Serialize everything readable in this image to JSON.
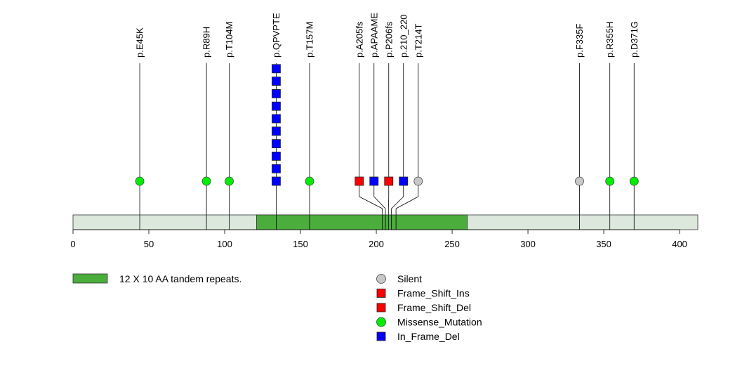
{
  "chart_data": {
    "type": "lollipop",
    "protein_length": 411,
    "axis": {
      "range": [
        0,
        412
      ],
      "ticks": [
        0,
        50,
        100,
        150,
        200,
        250,
        300,
        350,
        400
      ]
    },
    "domains": [
      {
        "label": "12 X 10 AA tandem repeats.",
        "start": 121,
        "end": 260,
        "color": "#4aad3c"
      }
    ],
    "backbone_color": "#dde8dc",
    "mutations": [
      {
        "label": "p.E45K",
        "position": 44,
        "type": "Missense_Mutation",
        "count": 1
      },
      {
        "label": "p.R89H",
        "position": 88,
        "type": "Missense_Mutation",
        "count": 1
      },
      {
        "label": "p.T104M",
        "position": 103,
        "type": "Missense_Mutation",
        "count": 1
      },
      {
        "label": "p.QPVPTE",
        "position": 134,
        "type": "In_Frame_Del",
        "count": 10
      },
      {
        "label": "p.T157M",
        "position": 156,
        "type": "Missense_Mutation",
        "count": 1
      },
      {
        "label": "p.A205fs",
        "position": 204,
        "type": "Frame_Shift_Ins",
        "count": 1
      },
      {
        "label": "p.APAAME",
        "position": 206,
        "type": "In_Frame_Del",
        "count": 1
      },
      {
        "label": "p.P206fs",
        "position": 208,
        "type": "Frame_Shift_Del",
        "count": 1
      },
      {
        "label": "p.210_220",
        "position": 210,
        "type": "In_Frame_Del",
        "count": 1
      },
      {
        "label": "p.T214T",
        "position": 213,
        "type": "Silent",
        "count": 1
      },
      {
        "label": "p.F335F",
        "position": 334,
        "type": "Silent",
        "count": 1
      },
      {
        "label": "p.R355H",
        "position": 354,
        "type": "Missense_Mutation",
        "count": 1
      },
      {
        "label": "p.D371G",
        "position": 370,
        "type": "Missense_Mutation",
        "count": 1
      }
    ],
    "legend": [
      {
        "label": "Silent",
        "shape": "circle",
        "color": "#c8c8c8"
      },
      {
        "label": "Frame_Shift_Ins",
        "shape": "square",
        "color": "#ff0000"
      },
      {
        "label": "Frame_Shift_Del",
        "shape": "square",
        "color": "#ff0000"
      },
      {
        "label": "Missense_Mutation",
        "shape": "circle",
        "color": "#00ee00"
      },
      {
        "label": "In_Frame_Del",
        "shape": "square",
        "color": "#0000ff"
      }
    ],
    "type_colors": {
      "Silent": "#c8c8c8",
      "Frame_Shift_Ins": "#ff0000",
      "Frame_Shift_Del": "#ff0000",
      "Missense_Mutation": "#00ee00",
      "In_Frame_Del": "#0000ff"
    },
    "type_shapes": {
      "Silent": "circle",
      "Frame_Shift_Ins": "square",
      "Frame_Shift_Del": "square",
      "Missense_Mutation": "circle",
      "In_Frame_Del": "square"
    }
  }
}
